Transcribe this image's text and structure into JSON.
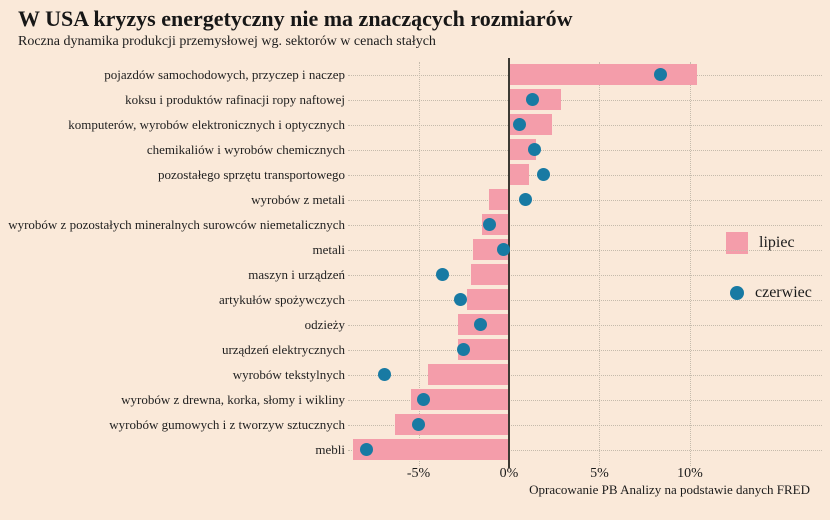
{
  "colors": {
    "background": "#fae9d9",
    "bar_pink": "#f49daa",
    "dot_teal": "#187aa3",
    "axis": "#3c3a33",
    "grid": "#c5bbac",
    "text": "#1b1b1b"
  },
  "chart_data": {
    "type": "bar",
    "orientation": "horizontal",
    "title": "W USA kryzys energetyczny nie ma znaczących rozmiarów",
    "subtitle": "Roczna dynamika produkcji przemysłowej wg. sektorów w cenach stałych",
    "source": "Opracowanie PB Analizy na podstawie danych FRED",
    "unit": "%",
    "categories": [
      "pojazdów samochodowych, przyczep i naczep",
      "koksu i produktów rafinacji ropy naftowej",
      "komputerów, wyrobów elektronicznych i optycznych",
      "chemikaliów i wyrobów chemicznych",
      "pozostałego sprzętu transportowego",
      "wyrobów z metali",
      "wyrobów z pozostałych mineralnych surowców niemetalicznych",
      "metali",
      "maszyn i urządzeń",
      "artykułów spożywczych",
      "odzieży",
      "urządzeń elektrycznych",
      "wyrobów tekstylnych",
      "wyrobów z drewna, korka, słomy i wikliny",
      "wyrobów gumowych i z tworzyw sztucznych",
      "mebli"
    ],
    "series": [
      {
        "name": "lipiec",
        "mark": "bar",
        "color": "#f49daa",
        "values": [
          10.4,
          2.9,
          2.4,
          1.5,
          1.1,
          -1.1,
          -1.5,
          -2.0,
          -2.1,
          -2.3,
          -2.8,
          -2.8,
          -4.5,
          -5.4,
          -6.3,
          -8.6
        ]
      },
      {
        "name": "czerwiec",
        "mark": "dot",
        "color": "#187aa3",
        "values": [
          8.4,
          1.3,
          0.6,
          1.4,
          1.9,
          0.9,
          -1.1,
          -0.3,
          -3.7,
          -2.7,
          -1.6,
          -2.5,
          -6.9,
          -4.7,
          -5.0,
          -7.9
        ]
      }
    ],
    "x_ticks": [
      {
        "value": -5,
        "label": "-5%"
      },
      {
        "value": 0,
        "label": "0%"
      },
      {
        "value": 5,
        "label": "5%"
      },
      {
        "value": 10,
        "label": "10%"
      }
    ],
    "xlim": [
      -8.9,
      17.3
    ],
    "grid": "dotted",
    "legend_position": "right-middle"
  }
}
